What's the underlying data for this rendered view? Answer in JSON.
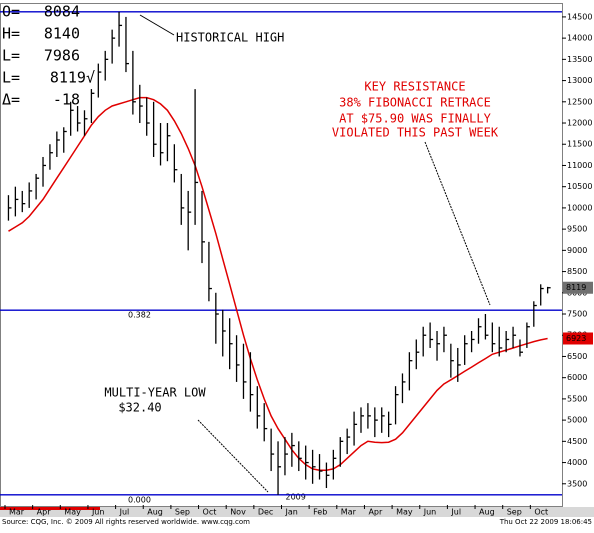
{
  "chart_data": {
    "type": "ohlc",
    "categories": [
      "Mar",
      "Apr",
      "May",
      "Jun",
      "Jul",
      "Aug",
      "Sep",
      "Oct",
      "Nov",
      "Dec",
      "Jan",
      "Feb",
      "Mar",
      "Apr",
      "May",
      "Jun",
      "Jul",
      "Aug",
      "Sep",
      "Oct"
    ],
    "year_label": "2009",
    "high": [
      10300,
      10500,
      10400,
      10600,
      10800,
      11200,
      11500,
      11800,
      11900,
      12500,
      12400,
      12300,
      12800,
      13400,
      13700,
      14200,
      14620,
      14500,
      13700,
      12900,
      12600,
      12500,
      12000,
      12000,
      11500,
      10800,
      10400,
      12800,
      10400,
      9200,
      8000,
      7600,
      7400,
      7000,
      6800,
      6600,
      5800,
      5400,
      4800,
      4500,
      4600,
      4700,
      4500,
      4400,
      4300,
      4200,
      4000,
      4300,
      4600,
      4800,
      5200,
      5300,
      5400,
      5300,
      5300,
      5200,
      5800,
      6100,
      6600,
      6900,
      7200,
      7300,
      7100,
      7200,
      6800,
      6700,
      7000,
      7100,
      7400,
      7500,
      7300,
      7200,
      7100,
      7200,
      6900,
      7300,
      7800,
      8200,
      8140
    ],
    "low": [
      9700,
      9800,
      9900,
      10000,
      10200,
      10500,
      10900,
      11200,
      11300,
      11700,
      11800,
      11700,
      12000,
      12600,
      13000,
      13400,
      13800,
      13200,
      12200,
      12000,
      11700,
      11200,
      11000,
      11100,
      10600,
      9600,
      9000,
      9600,
      8700,
      7800,
      6800,
      6500,
      6200,
      5900,
      5500,
      5200,
      4800,
      4500,
      3800,
      3240,
      3700,
      3900,
      3800,
      3600,
      3500,
      3600,
      3400,
      3600,
      3900,
      4200,
      4400,
      4700,
      4800,
      4600,
      4700,
      4600,
      4900,
      5400,
      5700,
      6200,
      6500,
      6700,
      6400,
      6600,
      6000,
      5900,
      6300,
      6600,
      6800,
      6900,
      6600,
      6500,
      6600,
      6700,
      6500,
      6700,
      7200,
      7700,
      7986
    ],
    "close": [
      10000,
      10200,
      10100,
      10400,
      10700,
      11000,
      11300,
      11600,
      11800,
      12300,
      12000,
      12100,
      12700,
      13200,
      13500,
      14000,
      14300,
      13400,
      12500,
      12400,
      12000,
      11500,
      11300,
      11700,
      10900,
      10000,
      9900,
      10600,
      9200,
      8100,
      7500,
      7100,
      6800,
      6300,
      5900,
      5600,
      5100,
      4800,
      4200,
      3900,
      4200,
      4400,
      4100,
      4000,
      3900,
      3800,
      3700,
      4100,
      4500,
      4600,
      4900,
      5100,
      5100,
      5000,
      5100,
      4900,
      5600,
      5900,
      6400,
      6600,
      7000,
      6900,
      6800,
      7000,
      6400,
      6300,
      6800,
      6900,
      7200,
      7000,
      6800,
      6700,
      6900,
      7000,
      6600,
      7200,
      7700,
      8100,
      8119
    ],
    "ma": {
      "color": "#e00000",
      "values": [
        9450,
        9550,
        9650,
        9800,
        10000,
        10200,
        10450,
        10700,
        10950,
        11200,
        11450,
        11700,
        11950,
        12150,
        12300,
        12400,
        12450,
        12500,
        12550,
        12600,
        12600,
        12550,
        12450,
        12300,
        12050,
        11750,
        11400,
        11000,
        10500,
        9950,
        9400,
        8800,
        8200,
        7600,
        7000,
        6450,
        5950,
        5500,
        5100,
        4800,
        4550,
        4300,
        4100,
        3950,
        3850,
        3820,
        3820,
        3850,
        3950,
        4100,
        4250,
        4400,
        4500,
        4480,
        4470,
        4480,
        4550,
        4700,
        4900,
        5100,
        5300,
        5500,
        5700,
        5850,
        5950,
        6050,
        6150,
        6250,
        6350,
        6450,
        6550,
        6600,
        6650,
        6700,
        6750,
        6800,
        6850,
        6890,
        6923
      ]
    },
    "bar_color": "#000000",
    "ylim": [
      3000,
      14710
    ],
    "yticks": [
      3500,
      4000,
      4500,
      5000,
      5500,
      6000,
      6500,
      7000,
      7500,
      8000,
      8500,
      9000,
      9500,
      10000,
      10500,
      11000,
      11500,
      12000,
      12500,
      13000,
      13500,
      14000,
      14500
    ],
    "hlines": {
      "color": "#0000cc",
      "lines": [
        {
          "value": 14620
        },
        {
          "value": 7590,
          "label": "0.382"
        },
        {
          "value": 3240,
          "label": "0.000"
        }
      ]
    },
    "price_labels": [
      {
        "value": 8119,
        "color": "#707070"
      },
      {
        "value": 6923,
        "color": "#e00000"
      }
    ],
    "info": [
      {
        "label": "O=",
        "value": 8084
      },
      {
        "label": "H=",
        "value": 8140
      },
      {
        "label": "L=",
        "value": 7986
      },
      {
        "label": "L=",
        "value": 8119,
        "value_label": "8119√"
      },
      {
        "label": "Δ=",
        "value": -18
      }
    ],
    "annotations": {
      "high": "HISTORICAL HIGH",
      "resistance": [
        "KEY RESISTANCE",
        "38% FIBONACCI RETRACE",
        "AT $75.90 WAS FINALLY",
        "VIOLATED THIS PAST WEEK"
      ],
      "low": [
        "MULTI-YEAR LOW",
        "$32.40"
      ]
    },
    "footer": {
      "source": "Source: CQG, Inc. © 2009 All rights reserved worldwide. www.cqg.com",
      "timestamp": "Thu Oct 22 2009 18:06:45"
    }
  }
}
